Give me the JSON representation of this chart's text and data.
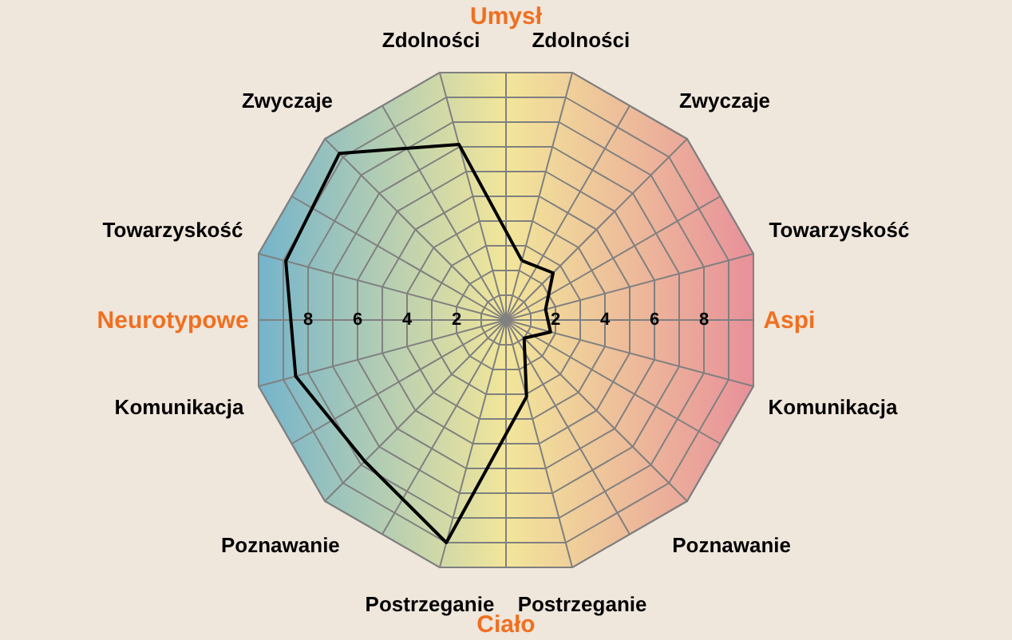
{
  "chart_data": {
    "type": "radar",
    "categories": [
      "Zdolności",
      "Zwyczaje",
      "Towarzyskość",
      "Komunikacja",
      "Poznawanie",
      "Postrzeganie",
      "Postrzeganie",
      "Poznawanie",
      "Komunikacja",
      "Towarzyskość",
      "Zwyczaje",
      "Zdolności"
    ],
    "series": [
      {
        "color": "#000000",
        "values": [
          2.4,
          2.6,
          1.6,
          1.8,
          1.0,
          3.1,
          9.0,
          7.8,
          8.5,
          8.9,
          9.2,
          7.1
        ]
      }
    ],
    "ylim": [
      0,
      10
    ],
    "yticks": [
      2,
      4,
      6,
      8
    ],
    "grid": true,
    "annotations": [
      "Umysł",
      "Aspi",
      "Ciało",
      "Neurotypowe",
      "8",
      "6",
      "4",
      "2"
    ]
  }
}
